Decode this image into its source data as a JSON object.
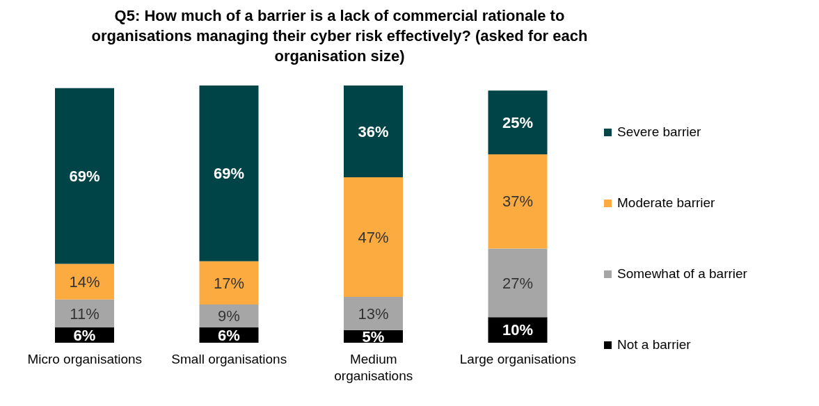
{
  "chart_data": {
    "type": "bar",
    "title": "Q5: How much of a barrier is a lack of commercial rationale to organisations managing their cyber risk effectively? (asked for each organisation size)",
    "categories": [
      "Micro organisations",
      "Small organisations",
      "Medium organisations",
      "Large organisations"
    ],
    "stacked": true,
    "legend": "right",
    "grid": false,
    "series": [
      {
        "name": "Not a barrier",
        "color": "#000000",
        "values": [
          6,
          6,
          5,
          10
        ],
        "value_labels": [
          "6%",
          "6%",
          "5%",
          "10%"
        ]
      },
      {
        "name": "Somewhat of a barrier",
        "color": "#a6a6a6",
        "values": [
          11,
          9,
          13,
          27
        ],
        "value_labels": [
          "11%",
          "9%",
          "13%",
          "27%"
        ]
      },
      {
        "name": "Moderate barrier",
        "color": "#fbab3f",
        "values": [
          14,
          17,
          47,
          37
        ],
        "value_labels": [
          "14%",
          "17%",
          "47%",
          "37%"
        ]
      },
      {
        "name": "Severe barrier",
        "color": "#004448",
        "values": [
          69,
          69,
          36,
          25
        ],
        "value_labels": [
          "69%",
          "69%",
          "36%",
          "25%"
        ]
      }
    ]
  }
}
